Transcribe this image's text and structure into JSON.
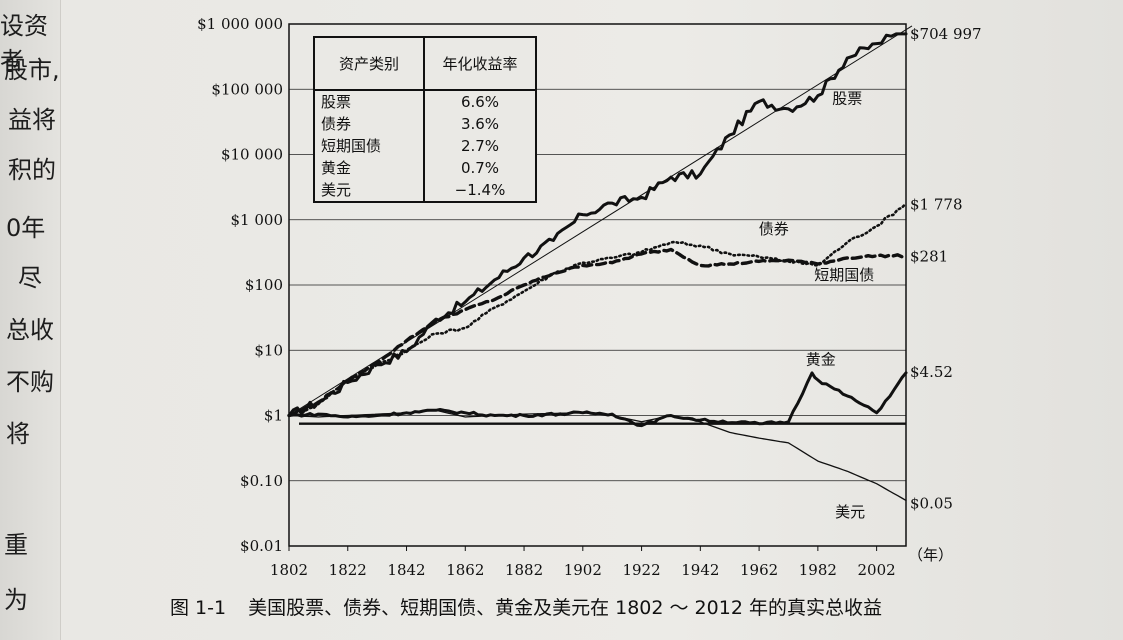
{
  "page_edge_text": [
    "设资者",
    "股市,",
    "益将",
    "积的",
    "0年",
    "尽",
    "总收",
    "不购",
    "将",
    "重",
    "为"
  ],
  "caption": {
    "figure_no": "图 1-1",
    "text": "美国股票、债券、短期国债、黄金及美元在 1802 ～ 2012 年的真实总收益"
  },
  "legend_table": {
    "headers": [
      "资产类别",
      "年化收益率"
    ],
    "rows": [
      {
        "asset": "股票",
        "rate": "6.6%"
      },
      {
        "asset": "债券",
        "rate": "3.6%"
      },
      {
        "asset": "短期国债",
        "rate": "2.7%"
      },
      {
        "asset": "黄金",
        "rate": "0.7%"
      },
      {
        "asset": "美元",
        "rate": "−1.4%"
      }
    ]
  },
  "chart_data": {
    "type": "line",
    "y_scale": "log",
    "ylim": [
      0.01,
      1000000
    ],
    "xlim": [
      1802,
      2012
    ],
    "x_ticks": [
      "1802",
      "1822",
      "1842",
      "1862",
      "1882",
      "1902",
      "1922",
      "1942",
      "1962",
      "1982",
      "2002"
    ],
    "x_unit_label": "（年）",
    "y_ticks": [
      {
        "value": 1000000,
        "label": "$1 000 000"
      },
      {
        "value": 100000,
        "label": "$100 000"
      },
      {
        "value": 10000,
        "label": "$10 000"
      },
      {
        "value": 1000,
        "label": "$1 000"
      },
      {
        "value": 100,
        "label": "$100"
      },
      {
        "value": 10,
        "label": "$10"
      },
      {
        "value": 1,
        "label": "$1"
      },
      {
        "value": 0.1,
        "label": "$0.10"
      },
      {
        "value": 0.01,
        "label": "$0.01"
      }
    ],
    "grid": "horizontal",
    "series": [
      {
        "name": "股票",
        "style": "solid-thick",
        "color": "#111111",
        "end_label": "$704 997",
        "points": [
          [
            1802,
            1
          ],
          [
            1812,
            1.6
          ],
          [
            1822,
            3.2
          ],
          [
            1832,
            6
          ],
          [
            1842,
            9.5
          ],
          [
            1852,
            30
          ],
          [
            1862,
            55
          ],
          [
            1872,
            120
          ],
          [
            1882,
            260
          ],
          [
            1892,
            480
          ],
          [
            1902,
            1200
          ],
          [
            1912,
            1800
          ],
          [
            1922,
            2200
          ],
          [
            1932,
            4500
          ],
          [
            1942,
            5000
          ],
          [
            1952,
            20000
          ],
          [
            1962,
            65000
          ],
          [
            1972,
            50000
          ],
          [
            1982,
            80000
          ],
          [
            1992,
            300000
          ],
          [
            2002,
            500000
          ],
          [
            2007,
            650000
          ],
          [
            2012,
            704997
          ]
        ]
      },
      {
        "name": "债券",
        "style": "dotted",
        "color": "#111111",
        "end_label": "$1 778",
        "points": [
          [
            1802,
            1
          ],
          [
            1812,
            1.5
          ],
          [
            1822,
            3.5
          ],
          [
            1832,
            6
          ],
          [
            1842,
            10
          ],
          [
            1852,
            18
          ],
          [
            1862,
            22
          ],
          [
            1872,
            45
          ],
          [
            1882,
            80
          ],
          [
            1892,
            150
          ],
          [
            1902,
            220
          ],
          [
            1912,
            260
          ],
          [
            1922,
            320
          ],
          [
            1932,
            450
          ],
          [
            1942,
            400
          ],
          [
            1952,
            300
          ],
          [
            1962,
            270
          ],
          [
            1972,
            230
          ],
          [
            1982,
            200
          ],
          [
            1992,
            450
          ],
          [
            2002,
            800
          ],
          [
            2012,
            1778
          ]
        ]
      },
      {
        "name": "短期国债",
        "style": "dashed",
        "color": "#111111",
        "end_label": "$281",
        "points": [
          [
            1802,
            1
          ],
          [
            1812,
            1.6
          ],
          [
            1822,
            3.4
          ],
          [
            1832,
            6.5
          ],
          [
            1842,
            14
          ],
          [
            1852,
            28
          ],
          [
            1862,
            42
          ],
          [
            1872,
            60
          ],
          [
            1882,
            100
          ],
          [
            1892,
            150
          ],
          [
            1902,
            200
          ],
          [
            1912,
            220
          ],
          [
            1922,
            300
          ],
          [
            1932,
            350
          ],
          [
            1942,
            200
          ],
          [
            1952,
            210
          ],
          [
            1962,
            230
          ],
          [
            1972,
            240
          ],
          [
            1982,
            210
          ],
          [
            1992,
            260
          ],
          [
            2002,
            280
          ],
          [
            2012,
            281
          ]
        ]
      },
      {
        "name": "黄金",
        "style": "solid-thick",
        "color": "#111111",
        "end_label": "$4.52",
        "points": [
          [
            1802,
            1
          ],
          [
            1812,
            1.05
          ],
          [
            1822,
            0.95
          ],
          [
            1832,
            1.0
          ],
          [
            1842,
            1.1
          ],
          [
            1852,
            1.2
          ],
          [
            1862,
            1.1
          ],
          [
            1872,
            1.0
          ],
          [
            1882,
            1.0
          ],
          [
            1902,
            1.1
          ],
          [
            1912,
            1.05
          ],
          [
            1922,
            0.7
          ],
          [
            1932,
            1.0
          ],
          [
            1942,
            0.85
          ],
          [
            1962,
            0.75
          ],
          [
            1972,
            0.8
          ],
          [
            1980,
            4.5
          ],
          [
            1982,
            3.5
          ],
          [
            1992,
            2.0
          ],
          [
            2002,
            1.1
          ],
          [
            2008,
            2.5
          ],
          [
            2012,
            4.52
          ]
        ]
      },
      {
        "name": "美元",
        "style": "solid-thin",
        "color": "#111111",
        "end_label": "$0.05",
        "points": [
          [
            1802,
            1
          ],
          [
            1812,
            0.95
          ],
          [
            1822,
            1.0
          ],
          [
            1842,
            1.1
          ],
          [
            1852,
            1.2
          ],
          [
            1862,
            0.95
          ],
          [
            1872,
            1.0
          ],
          [
            1882,
            1.05
          ],
          [
            1902,
            1.1
          ],
          [
            1912,
            1.0
          ],
          [
            1922,
            0.8
          ],
          [
            1932,
            1.0
          ],
          [
            1942,
            0.8
          ],
          [
            1952,
            0.55
          ],
          [
            1962,
            0.45
          ],
          [
            1972,
            0.38
          ],
          [
            1982,
            0.2
          ],
          [
            1992,
            0.14
          ],
          [
            2002,
            0.09
          ],
          [
            2012,
            0.05
          ]
        ]
      }
    ],
    "baseline": {
      "value": 0.75,
      "from": 1802,
      "to": 2012
    }
  }
}
